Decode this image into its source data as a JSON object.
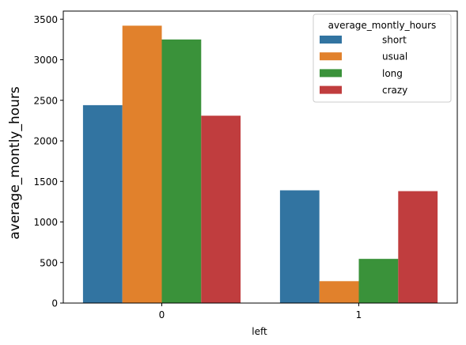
{
  "chart_data": {
    "type": "bar",
    "title": "",
    "xlabel": "left",
    "ylabel": "average_montly_hours",
    "categories": [
      "0",
      "1"
    ],
    "ylim": [
      0,
      3600
    ],
    "yticks": [
      0,
      500,
      1000,
      1500,
      2000,
      2500,
      3000,
      3500
    ],
    "grid": false,
    "legend": {
      "title": "average_montly_hours",
      "placement": "top-right"
    },
    "series": [
      {
        "name": "short",
        "color": "#3274a1",
        "values": [
          2440,
          1390
        ]
      },
      {
        "name": "usual",
        "color": "#e1812c",
        "values": [
          3420,
          270
        ]
      },
      {
        "name": "long",
        "color": "#3a923a",
        "values": [
          3250,
          545
        ]
      },
      {
        "name": "crazy",
        "color": "#c03d3e",
        "values": [
          2310,
          1380
        ]
      }
    ]
  }
}
